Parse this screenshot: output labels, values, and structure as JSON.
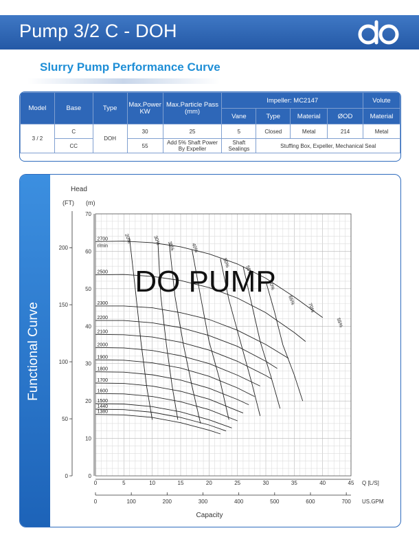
{
  "header": {
    "title": "Pump 3/2 C - DOH",
    "logo_text": "do",
    "background": "#2e67b8"
  },
  "subtitle": "Slurry Pump Performance Curve",
  "table": {
    "h_model": "Model",
    "h_base": "Base",
    "h_type": "Type",
    "h_power": "Max.Power KW",
    "h_particle": "Max.Particle Pass (mm)",
    "h_impeller": "Impeller: MC2147",
    "h_volute": "Volute",
    "h_vane": "Vane",
    "h_imp_type": "Type",
    "h_material": "Material",
    "h_od": "ØOD",
    "h_vol_material": "Material",
    "model": "3 / 2",
    "base_c": "C",
    "base_cc": "CC",
    "type_val": "DOH",
    "power_c": "30",
    "power_cc": "55",
    "particle_c": "25",
    "vane": "5",
    "imp_type": "Closed",
    "imp_material": "Metal",
    "od": "214",
    "vol_material": "Metal",
    "cc_note": "Add 5% Shaft Power By Expeller",
    "cc_seal": "Shaft Sealings",
    "cc_seal_detail": "Stuffing Box, Expeller, Mechanical Seal"
  },
  "side_label": "Functional Curve",
  "watermark": "DO PUMP",
  "chart_data": {
    "type": "line",
    "title": "",
    "ylabel": "Head",
    "yunit_ft": "(FT)",
    "yunit_m": "(m)",
    "xlabel": "Capacity",
    "xunit_ls": "Q [L/S]",
    "xunit_gpm": "US.GPM",
    "speed_unit": "r/min",
    "xlim": [
      0,
      45
    ],
    "ylim": [
      0,
      70
    ],
    "x_ticks_ls": [
      "0",
      "5",
      "10",
      "15",
      "20",
      "25",
      "30",
      "35",
      "40",
      "45"
    ],
    "x_ticks_gpm": [
      "0",
      "100",
      "200",
      "300",
      "400",
      "500",
      "600",
      "700"
    ],
    "y_ticks_m": [
      "0",
      "10",
      "20",
      "30",
      "40",
      "50",
      "60",
      "70"
    ],
    "y_ticks_ft": [
      "0",
      "50",
      "100",
      "150",
      "200"
    ],
    "grid": true,
    "speed_curves": [
      {
        "name": "2700",
        "points": [
          [
            0,
            62.6
          ],
          [
            5,
            62.7
          ],
          [
            10,
            62.3
          ],
          [
            15,
            61.2
          ],
          [
            20,
            59.3
          ],
          [
            25,
            56.6
          ],
          [
            30,
            52.8
          ],
          [
            35,
            47.8
          ],
          [
            38,
            44.5
          ],
          [
            40,
            42.3
          ]
        ]
      },
      {
        "name": "2500",
        "points": [
          [
            0,
            53.7
          ],
          [
            5,
            53.8
          ],
          [
            10,
            53.3
          ],
          [
            15,
            52.2
          ],
          [
            20,
            50.3
          ],
          [
            25,
            47.5
          ],
          [
            30,
            43.6
          ],
          [
            35,
            38.3
          ],
          [
            37,
            35.9
          ]
        ]
      },
      {
        "name": "2300",
        "points": [
          [
            0,
            45.4
          ],
          [
            5,
            45.4
          ],
          [
            10,
            44.9
          ],
          [
            15,
            43.6
          ],
          [
            20,
            41.8
          ],
          [
            25,
            38.9
          ],
          [
            30,
            35.1
          ],
          [
            34,
            31.4
          ]
        ]
      },
      {
        "name": "2200",
        "points": [
          [
            0,
            41.5
          ],
          [
            5,
            41.5
          ],
          [
            10,
            40.9
          ],
          [
            15,
            39.6
          ],
          [
            20,
            37.5
          ],
          [
            25,
            34.6
          ],
          [
            30,
            30.6
          ],
          [
            32,
            28.7
          ]
        ]
      },
      {
        "name": "2100",
        "points": [
          [
            0,
            37.8
          ],
          [
            5,
            37.7
          ],
          [
            10,
            37.1
          ],
          [
            15,
            35.7
          ],
          [
            20,
            33.6
          ],
          [
            25,
            30.6
          ],
          [
            30,
            26.8
          ],
          [
            31,
            25.9
          ]
        ]
      },
      {
        "name": "2000",
        "points": [
          [
            0,
            34.3
          ],
          [
            5,
            34.2
          ],
          [
            10,
            33.5
          ],
          [
            15,
            32.1
          ],
          [
            20,
            30
          ],
          [
            25,
            26.9
          ],
          [
            29,
            24
          ]
        ]
      },
      {
        "name": "1900",
        "points": [
          [
            0,
            31
          ],
          [
            5,
            30.9
          ],
          [
            10,
            30.2
          ],
          [
            15,
            28.8
          ],
          [
            20,
            26.6
          ],
          [
            25,
            23.5
          ],
          [
            28,
            21.2
          ]
        ]
      },
      {
        "name": "1800",
        "points": [
          [
            0,
            27.8
          ],
          [
            5,
            27.7
          ],
          [
            10,
            27
          ],
          [
            15,
            25.6
          ],
          [
            20,
            23.4
          ],
          [
            25,
            20.4
          ],
          [
            27,
            19
          ]
        ]
      },
      {
        "name": "1700",
        "points": [
          [
            0,
            24.8
          ],
          [
            5,
            24.7
          ],
          [
            10,
            24
          ],
          [
            15,
            22.6
          ],
          [
            20,
            20.5
          ],
          [
            25,
            17.4
          ],
          [
            26,
            16.8
          ]
        ]
      },
      {
        "name": "1600",
        "points": [
          [
            0,
            22
          ],
          [
            5,
            21.9
          ],
          [
            10,
            21.2
          ],
          [
            15,
            19.8
          ],
          [
            20,
            17.7
          ],
          [
            25,
            14.7
          ]
        ]
      },
      {
        "name": "1500",
        "points": [
          [
            0,
            19.3
          ],
          [
            5,
            19.2
          ],
          [
            10,
            18.5
          ],
          [
            15,
            17.1
          ],
          [
            20,
            15
          ],
          [
            24,
            12.8
          ]
        ]
      },
      {
        "name": "1440",
        "points": [
          [
            0,
            17.8
          ],
          [
            5,
            17.7
          ],
          [
            10,
            17
          ],
          [
            15,
            15.6
          ],
          [
            20,
            13.6
          ],
          [
            23,
            12
          ]
        ]
      },
      {
        "name": "1380",
        "points": [
          [
            0,
            16.4
          ],
          [
            5,
            16.3
          ],
          [
            10,
            15.6
          ],
          [
            15,
            14.2
          ],
          [
            20,
            12.2
          ],
          [
            22,
            11.2
          ]
        ]
      }
    ],
    "efficiency_labels": [
      "20%",
      "30%",
      "35%",
      "40%",
      "50%",
      "55%",
      "60%",
      "65%",
      "70%",
      "55%"
    ],
    "efficiency_curves": [
      {
        "name": "20%",
        "points": [
          [
            6,
            63.5
          ],
          [
            7,
            50
          ],
          [
            8,
            36
          ],
          [
            9,
            24
          ],
          [
            10,
            15
          ]
        ]
      },
      {
        "name": "30%",
        "points": [
          [
            11,
            62.5
          ],
          [
            11.5,
            48
          ],
          [
            12.5,
            35
          ],
          [
            13.5,
            24
          ],
          [
            14.5,
            15
          ]
        ]
      },
      {
        "name": "35%",
        "points": [
          [
            13,
            62
          ],
          [
            14,
            48
          ],
          [
            15.5,
            35
          ],
          [
            17,
            24
          ],
          [
            18.5,
            14
          ]
        ]
      },
      {
        "name": "40%",
        "points": [
          [
            17,
            60.5
          ],
          [
            18.5,
            48
          ],
          [
            20,
            36
          ],
          [
            22,
            25
          ],
          [
            23.5,
            15
          ]
        ]
      },
      {
        "name": "50%",
        "points": [
          [
            22,
            58
          ],
          [
            23.5,
            47
          ],
          [
            25.5,
            36
          ],
          [
            27.5,
            25
          ],
          [
            29,
            16
          ]
        ]
      },
      {
        "name": "55%",
        "points": [
          [
            26,
            56
          ],
          [
            27.5,
            46
          ],
          [
            29,
            36
          ],
          [
            31,
            26
          ],
          [
            32.5,
            18
          ]
        ]
      },
      {
        "name": "60%",
        "points": [
          [
            30,
            52
          ],
          [
            31.5,
            44
          ],
          [
            33,
            35
          ],
          [
            35,
            27
          ],
          [
            36.5,
            20
          ]
        ]
      }
    ]
  }
}
